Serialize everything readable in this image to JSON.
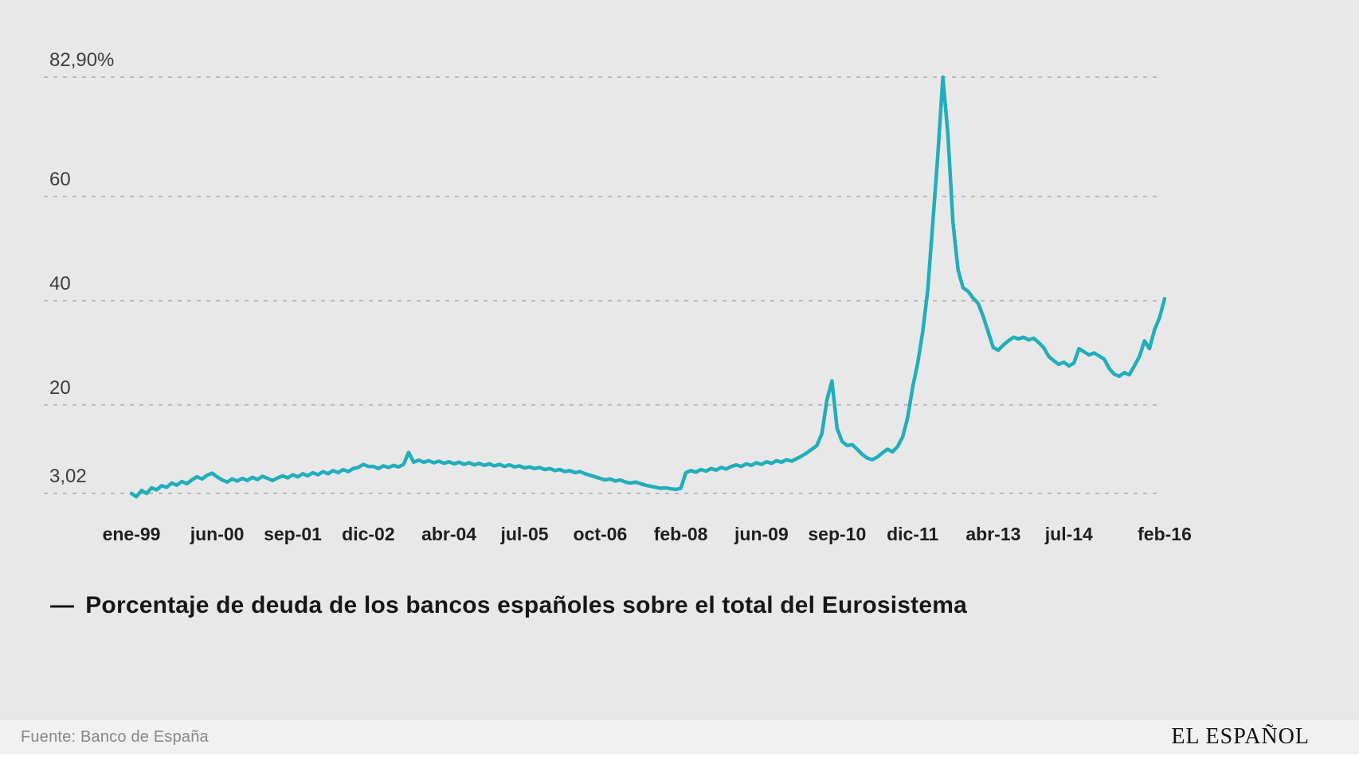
{
  "page": {
    "background": "#e8e8e8",
    "legend": {
      "dash": "—",
      "label": "Porcentaje de deuda de los bancos españoles sobre el total del Eurosistema"
    },
    "footer": {
      "source": "Fuente: Banco de España",
      "brand": "EL ESPAÑOL"
    }
  },
  "chart_data": {
    "type": "line",
    "title": "",
    "series_name": "Porcentaje de deuda de los bancos españoles sobre el total del Eurosistema",
    "line_color": "#21aebb",
    "grid_color": "#b9b9b9",
    "y_label_color": "#3c3c3c",
    "x_label_color": "#1e1e1e",
    "grid_on": true,
    "legend_position": "bottom-left",
    "x_start": "ene-99",
    "x_end": "feb-16",
    "x_unit": "month",
    "ylim": [
      0,
      87
    ],
    "y_ticks": [
      {
        "label": "82,90%",
        "value": 82.9
      },
      {
        "label": "60",
        "value": 60
      },
      {
        "label": "40",
        "value": 40
      },
      {
        "label": "20",
        "value": 20
      },
      {
        "label": "3,02",
        "value": 3.02
      }
    ],
    "x_ticks": [
      {
        "label": "ene-99",
        "index": 0
      },
      {
        "label": "jun-00",
        "index": 17
      },
      {
        "label": "sep-01",
        "index": 32
      },
      {
        "label": "dic-02",
        "index": 47
      },
      {
        "label": "abr-04",
        "index": 63
      },
      {
        "label": "jul-05",
        "index": 78
      },
      {
        "label": "oct-06",
        "index": 93
      },
      {
        "label": "feb-08",
        "index": 109
      },
      {
        "label": "jun-09",
        "index": 125
      },
      {
        "label": "sep-10",
        "index": 140
      },
      {
        "label": "dic-11",
        "index": 155
      },
      {
        "label": "abr-13",
        "index": 171
      },
      {
        "label": "jul-14",
        "index": 186
      },
      {
        "label": "feb-16",
        "index": 205
      }
    ],
    "values": [
      3.02,
      2.4,
      3.6,
      3.0,
      4.1,
      3.7,
      4.5,
      4.2,
      5.0,
      4.6,
      5.3,
      4.9,
      5.6,
      6.2,
      5.8,
      6.5,
      6.9,
      6.2,
      5.6,
      5.2,
      5.8,
      5.4,
      5.9,
      5.5,
      6.1,
      5.7,
      6.3,
      5.9,
      5.5,
      6.0,
      6.4,
      6.0,
      6.6,
      6.2,
      6.8,
      6.4,
      7.0,
      6.6,
      7.2,
      6.8,
      7.4,
      7.0,
      7.6,
      7.2,
      7.8,
      8.0,
      8.6,
      8.2,
      8.2,
      7.8,
      8.3,
      8.0,
      8.4,
      8.1,
      8.6,
      10.9,
      9.0,
      9.4,
      9.0,
      9.3,
      8.9,
      9.2,
      8.8,
      9.1,
      8.7,
      9.0,
      8.6,
      8.9,
      8.5,
      8.8,
      8.4,
      8.7,
      8.3,
      8.6,
      8.2,
      8.5,
      8.1,
      8.3,
      7.9,
      8.1,
      7.8,
      8.0,
      7.6,
      7.8,
      7.4,
      7.6,
      7.2,
      7.4,
      7.0,
      7.2,
      6.8,
      6.5,
      6.2,
      5.9,
      5.6,
      5.8,
      5.4,
      5.6,
      5.2,
      5.0,
      5.2,
      4.9,
      4.6,
      4.4,
      4.2,
      4.0,
      4.1,
      3.9,
      3.8,
      4.0,
      7.0,
      7.4,
      7.1,
      7.6,
      7.3,
      7.8,
      7.5,
      8.0,
      7.7,
      8.2,
      8.5,
      8.2,
      8.7,
      8.4,
      8.9,
      8.6,
      9.1,
      8.8,
      9.3,
      9.0,
      9.5,
      9.2,
      9.7,
      10.2,
      10.8,
      11.5,
      12.2,
      14.5,
      21.0,
      24.6,
      15.5,
      13.0,
      12.2,
      12.4,
      11.5,
      10.5,
      9.8,
      9.5,
      10.0,
      10.8,
      11.5,
      11.0,
      12.0,
      13.8,
      17.5,
      23.4,
      28.0,
      34.0,
      42.0,
      55.0,
      68.0,
      82.9,
      72.0,
      55.0,
      46.0,
      42.5,
      41.8,
      40.5,
      39.5,
      37.0,
      34.0,
      31.0,
      30.5,
      31.5,
      32.3,
      33.0,
      32.7,
      33.0,
      32.5,
      32.8,
      32.0,
      31.0,
      29.3,
      28.5,
      27.8,
      28.2,
      27.5,
      28.0,
      30.8,
      30.2,
      29.6,
      30.0,
      29.4,
      28.8,
      27.0,
      25.9,
      25.5,
      26.2,
      25.8,
      27.5,
      29.3,
      32.3,
      30.8,
      34.4,
      36.8,
      40.4
    ]
  }
}
